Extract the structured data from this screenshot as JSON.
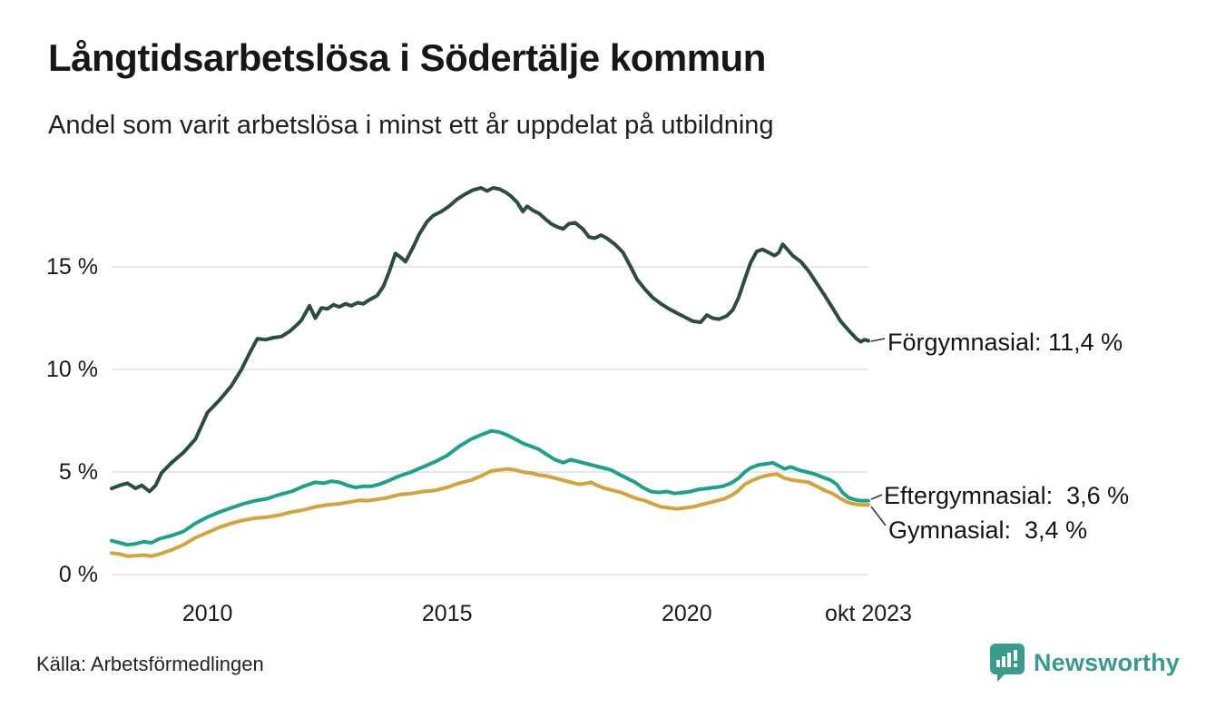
{
  "header": {
    "title": "Långtidsarbetslösa i Södertälje kommun",
    "subtitle": "Andel som varit arbetslösa i minst ett år uppdelat på utbildning"
  },
  "footer": {
    "source": "Källa: Arbetsförmedlingen",
    "brand_name": "Newsworthy",
    "brand_icon": "bar-chart-speech-bubble-icon"
  },
  "colors": {
    "forgymnasial": "#2B4B43",
    "eftergymnasial": "#1DA18A",
    "gymnasial": "#D2A43B",
    "grid": "#E7E7E7",
    "text": "#1A1A1A",
    "annotation_connector": "#333333",
    "brand_teal": "#3A9A8D",
    "background": "#FFFFFF"
  },
  "chart_data": {
    "type": "line",
    "title": "Långtidsarbetslösa i Södertälje kommun",
    "subtitle": "Andel som varit arbetslösa i minst ett år uppdelat på utbildning",
    "grid": true,
    "legend_position": "right-end-annotations",
    "xlabel": "",
    "ylabel": "",
    "xlim": [
      2008.0,
      2023.79
    ],
    "ylim": [
      0,
      19.6
    ],
    "x_axis": {
      "ticks": [
        {
          "label": "2010",
          "year": 2010
        },
        {
          "label": "2015",
          "year": 2015
        },
        {
          "label": "2020",
          "year": 2020
        },
        {
          "label": "okt 2023",
          "year": 2023.79
        }
      ]
    },
    "y_axis": {
      "ticks": [
        {
          "label": "0 %",
          "value": 0
        },
        {
          "label": "5 %",
          "value": 5
        },
        {
          "label": "10 %",
          "value": 10
        },
        {
          "label": "15 %",
          "value": 15
        }
      ]
    },
    "series": [
      {
        "name": "Förgymnasial",
        "color": "#2B4B43",
        "end_value": 11.4,
        "end_label": "Förgymnasial: 11,4 %",
        "points": [
          [
            2008.0,
            4.2
          ],
          [
            2008.17,
            4.35
          ],
          [
            2008.33,
            4.45
          ],
          [
            2008.5,
            4.2
          ],
          [
            2008.63,
            4.35
          ],
          [
            2008.79,
            4.05
          ],
          [
            2008.92,
            4.35
          ],
          [
            2009.04,
            4.95
          ],
          [
            2009.25,
            5.45
          ],
          [
            2009.5,
            5.95
          ],
          [
            2009.75,
            6.6
          ],
          [
            2010.0,
            7.9
          ],
          [
            2010.25,
            8.5
          ],
          [
            2010.5,
            9.2
          ],
          [
            2010.71,
            10.0
          ],
          [
            2010.88,
            10.8
          ],
          [
            2011.04,
            11.5
          ],
          [
            2011.21,
            11.45
          ],
          [
            2011.38,
            11.55
          ],
          [
            2011.54,
            11.6
          ],
          [
            2011.71,
            11.85
          ],
          [
            2011.88,
            12.2
          ],
          [
            2011.96,
            12.4
          ],
          [
            2012.13,
            13.1
          ],
          [
            2012.25,
            12.5
          ],
          [
            2012.38,
            13.0
          ],
          [
            2012.5,
            12.95
          ],
          [
            2012.63,
            13.15
          ],
          [
            2012.75,
            13.05
          ],
          [
            2012.88,
            13.2
          ],
          [
            2013.0,
            13.1
          ],
          [
            2013.13,
            13.25
          ],
          [
            2013.25,
            13.2
          ],
          [
            2013.38,
            13.4
          ],
          [
            2013.54,
            13.6
          ],
          [
            2013.67,
            14.05
          ],
          [
            2013.79,
            14.75
          ],
          [
            2013.92,
            15.65
          ],
          [
            2014.04,
            15.45
          ],
          [
            2014.13,
            15.25
          ],
          [
            2014.29,
            15.95
          ],
          [
            2014.42,
            16.6
          ],
          [
            2014.58,
            17.2
          ],
          [
            2014.71,
            17.5
          ],
          [
            2014.88,
            17.7
          ],
          [
            2015.04,
            17.95
          ],
          [
            2015.21,
            18.3
          ],
          [
            2015.38,
            18.55
          ],
          [
            2015.54,
            18.75
          ],
          [
            2015.71,
            18.85
          ],
          [
            2015.83,
            18.7
          ],
          [
            2015.96,
            18.85
          ],
          [
            2016.08,
            18.8
          ],
          [
            2016.21,
            18.65
          ],
          [
            2016.33,
            18.45
          ],
          [
            2016.46,
            18.15
          ],
          [
            2016.58,
            17.7
          ],
          [
            2016.67,
            17.95
          ],
          [
            2016.79,
            17.75
          ],
          [
            2016.92,
            17.6
          ],
          [
            2017.04,
            17.35
          ],
          [
            2017.17,
            17.1
          ],
          [
            2017.29,
            16.95
          ],
          [
            2017.42,
            16.85
          ],
          [
            2017.54,
            17.1
          ],
          [
            2017.67,
            17.15
          ],
          [
            2017.83,
            16.85
          ],
          [
            2017.96,
            16.45
          ],
          [
            2018.08,
            16.4
          ],
          [
            2018.21,
            16.55
          ],
          [
            2018.33,
            16.4
          ],
          [
            2018.5,
            16.1
          ],
          [
            2018.67,
            15.7
          ],
          [
            2018.83,
            15.0
          ],
          [
            2018.96,
            14.4
          ],
          [
            2019.13,
            13.9
          ],
          [
            2019.29,
            13.5
          ],
          [
            2019.46,
            13.2
          ],
          [
            2019.63,
            12.95
          ],
          [
            2019.79,
            12.75
          ],
          [
            2019.96,
            12.55
          ],
          [
            2020.13,
            12.35
          ],
          [
            2020.29,
            12.3
          ],
          [
            2020.42,
            12.65
          ],
          [
            2020.54,
            12.5
          ],
          [
            2020.67,
            12.45
          ],
          [
            2020.83,
            12.6
          ],
          [
            2020.96,
            12.9
          ],
          [
            2021.08,
            13.5
          ],
          [
            2021.21,
            14.4
          ],
          [
            2021.33,
            15.2
          ],
          [
            2021.46,
            15.75
          ],
          [
            2021.58,
            15.85
          ],
          [
            2021.71,
            15.7
          ],
          [
            2021.83,
            15.55
          ],
          [
            2021.92,
            15.7
          ],
          [
            2022.0,
            16.1
          ],
          [
            2022.08,
            15.9
          ],
          [
            2022.21,
            15.55
          ],
          [
            2022.38,
            15.25
          ],
          [
            2022.54,
            14.8
          ],
          [
            2022.71,
            14.2
          ],
          [
            2022.88,
            13.6
          ],
          [
            2023.04,
            13.0
          ],
          [
            2023.21,
            12.35
          ],
          [
            2023.38,
            11.9
          ],
          [
            2023.54,
            11.5
          ],
          [
            2023.63,
            11.35
          ],
          [
            2023.71,
            11.45
          ],
          [
            2023.79,
            11.4
          ]
        ]
      },
      {
        "name": "Eftergymnasial",
        "color": "#1DA18A",
        "end_value": 3.6,
        "end_label": "Eftergymnasial:  3,6 %",
        "points": [
          [
            2008.0,
            1.65
          ],
          [
            2008.17,
            1.55
          ],
          [
            2008.33,
            1.45
          ],
          [
            2008.5,
            1.5
          ],
          [
            2008.67,
            1.6
          ],
          [
            2008.83,
            1.55
          ],
          [
            2009.0,
            1.75
          ],
          [
            2009.25,
            1.9
          ],
          [
            2009.5,
            2.1
          ],
          [
            2009.75,
            2.5
          ],
          [
            2010.0,
            2.8
          ],
          [
            2010.25,
            3.05
          ],
          [
            2010.5,
            3.25
          ],
          [
            2010.75,
            3.45
          ],
          [
            2011.0,
            3.6
          ],
          [
            2011.25,
            3.7
          ],
          [
            2011.5,
            3.9
          ],
          [
            2011.75,
            4.05
          ],
          [
            2012.0,
            4.3
          ],
          [
            2012.25,
            4.5
          ],
          [
            2012.42,
            4.45
          ],
          [
            2012.58,
            4.55
          ],
          [
            2012.75,
            4.5
          ],
          [
            2012.92,
            4.35
          ],
          [
            2013.08,
            4.25
          ],
          [
            2013.25,
            4.3
          ],
          [
            2013.42,
            4.3
          ],
          [
            2013.58,
            4.4
          ],
          [
            2013.75,
            4.55
          ],
          [
            2014.0,
            4.8
          ],
          [
            2014.25,
            5.0
          ],
          [
            2014.5,
            5.25
          ],
          [
            2014.75,
            5.5
          ],
          [
            2015.0,
            5.8
          ],
          [
            2015.25,
            6.25
          ],
          [
            2015.5,
            6.6
          ],
          [
            2015.75,
            6.85
          ],
          [
            2015.92,
            7.0
          ],
          [
            2016.08,
            6.95
          ],
          [
            2016.25,
            6.8
          ],
          [
            2016.42,
            6.6
          ],
          [
            2016.58,
            6.4
          ],
          [
            2016.75,
            6.25
          ],
          [
            2016.92,
            6.1
          ],
          [
            2017.08,
            5.85
          ],
          [
            2017.25,
            5.6
          ],
          [
            2017.42,
            5.45
          ],
          [
            2017.58,
            5.6
          ],
          [
            2017.75,
            5.5
          ],
          [
            2017.92,
            5.4
          ],
          [
            2018.08,
            5.3
          ],
          [
            2018.25,
            5.2
          ],
          [
            2018.42,
            5.1
          ],
          [
            2018.58,
            4.9
          ],
          [
            2018.75,
            4.7
          ],
          [
            2018.92,
            4.5
          ],
          [
            2019.08,
            4.25
          ],
          [
            2019.25,
            4.05
          ],
          [
            2019.42,
            4.0
          ],
          [
            2019.58,
            4.05
          ],
          [
            2019.75,
            3.95
          ],
          [
            2019.92,
            4.0
          ],
          [
            2020.08,
            4.05
          ],
          [
            2020.25,
            4.15
          ],
          [
            2020.42,
            4.2
          ],
          [
            2020.58,
            4.25
          ],
          [
            2020.75,
            4.3
          ],
          [
            2020.92,
            4.45
          ],
          [
            2021.08,
            4.7
          ],
          [
            2021.21,
            5.0
          ],
          [
            2021.33,
            5.2
          ],
          [
            2021.5,
            5.35
          ],
          [
            2021.67,
            5.4
          ],
          [
            2021.79,
            5.45
          ],
          [
            2021.92,
            5.3
          ],
          [
            2022.04,
            5.15
          ],
          [
            2022.17,
            5.25
          ],
          [
            2022.33,
            5.1
          ],
          [
            2022.5,
            5.0
          ],
          [
            2022.67,
            4.9
          ],
          [
            2022.83,
            4.75
          ],
          [
            2023.0,
            4.6
          ],
          [
            2023.13,
            4.4
          ],
          [
            2023.25,
            4.0
          ],
          [
            2023.38,
            3.75
          ],
          [
            2023.5,
            3.65
          ],
          [
            2023.63,
            3.6
          ],
          [
            2023.79,
            3.6
          ]
        ]
      },
      {
        "name": "Gymnasial",
        "color": "#D2A43B",
        "end_value": 3.4,
        "end_label": "Gymnasial:  3,4 %",
        "points": [
          [
            2008.0,
            1.05
          ],
          [
            2008.17,
            1.0
          ],
          [
            2008.33,
            0.9
          ],
          [
            2008.5,
            0.92
          ],
          [
            2008.67,
            0.95
          ],
          [
            2008.83,
            0.9
          ],
          [
            2009.0,
            1.0
          ],
          [
            2009.25,
            1.2
          ],
          [
            2009.5,
            1.45
          ],
          [
            2009.75,
            1.8
          ],
          [
            2010.0,
            2.05
          ],
          [
            2010.25,
            2.3
          ],
          [
            2010.5,
            2.5
          ],
          [
            2010.75,
            2.65
          ],
          [
            2011.0,
            2.75
          ],
          [
            2011.25,
            2.8
          ],
          [
            2011.5,
            2.9
          ],
          [
            2011.75,
            3.05
          ],
          [
            2012.0,
            3.15
          ],
          [
            2012.25,
            3.3
          ],
          [
            2012.5,
            3.4
          ],
          [
            2012.75,
            3.45
          ],
          [
            2013.0,
            3.55
          ],
          [
            2013.17,
            3.62
          ],
          [
            2013.33,
            3.6
          ],
          [
            2013.5,
            3.65
          ],
          [
            2013.75,
            3.75
          ],
          [
            2014.0,
            3.9
          ],
          [
            2014.25,
            3.95
          ],
          [
            2014.5,
            4.05
          ],
          [
            2014.75,
            4.1
          ],
          [
            2015.0,
            4.25
          ],
          [
            2015.25,
            4.45
          ],
          [
            2015.5,
            4.6
          ],
          [
            2015.75,
            4.85
          ],
          [
            2015.92,
            5.05
          ],
          [
            2016.08,
            5.1
          ],
          [
            2016.25,
            5.15
          ],
          [
            2016.42,
            5.1
          ],
          [
            2016.58,
            5.0
          ],
          [
            2016.75,
            4.95
          ],
          [
            2016.92,
            4.85
          ],
          [
            2017.08,
            4.8
          ],
          [
            2017.25,
            4.7
          ],
          [
            2017.42,
            4.6
          ],
          [
            2017.58,
            4.5
          ],
          [
            2017.75,
            4.4
          ],
          [
            2017.92,
            4.45
          ],
          [
            2018.0,
            4.5
          ],
          [
            2018.13,
            4.35
          ],
          [
            2018.29,
            4.2
          ],
          [
            2018.46,
            4.1
          ],
          [
            2018.63,
            4.0
          ],
          [
            2018.79,
            3.85
          ],
          [
            2018.96,
            3.7
          ],
          [
            2019.13,
            3.6
          ],
          [
            2019.29,
            3.45
          ],
          [
            2019.46,
            3.3
          ],
          [
            2019.63,
            3.25
          ],
          [
            2019.79,
            3.2
          ],
          [
            2019.96,
            3.25
          ],
          [
            2020.13,
            3.3
          ],
          [
            2020.29,
            3.4
          ],
          [
            2020.46,
            3.5
          ],
          [
            2020.63,
            3.6
          ],
          [
            2020.79,
            3.7
          ],
          [
            2020.96,
            3.9
          ],
          [
            2021.08,
            4.1
          ],
          [
            2021.21,
            4.4
          ],
          [
            2021.38,
            4.6
          ],
          [
            2021.54,
            4.75
          ],
          [
            2021.71,
            4.85
          ],
          [
            2021.88,
            4.9
          ],
          [
            2022.04,
            4.7
          ],
          [
            2022.21,
            4.6
          ],
          [
            2022.38,
            4.55
          ],
          [
            2022.54,
            4.5
          ],
          [
            2022.71,
            4.3
          ],
          [
            2022.88,
            4.1
          ],
          [
            2023.04,
            3.95
          ],
          [
            2023.21,
            3.7
          ],
          [
            2023.33,
            3.55
          ],
          [
            2023.46,
            3.45
          ],
          [
            2023.63,
            3.4
          ],
          [
            2023.79,
            3.4
          ]
        ]
      }
    ]
  }
}
